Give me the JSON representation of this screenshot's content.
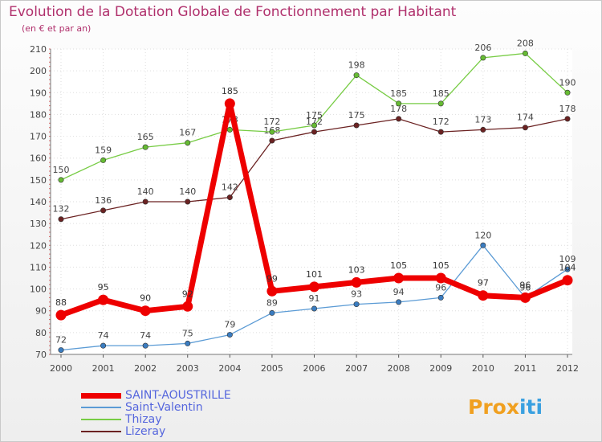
{
  "chart_data": {
    "type": "line",
    "title": "Evolution de la Dotation Globale de Fonctionnement par Habitant",
    "subtitle": "(en € et par an)",
    "xlabel": "",
    "ylabel": "",
    "x": [
      "2000",
      "2001",
      "2002",
      "2003",
      "2004",
      "2005",
      "2006",
      "2007",
      "2008",
      "2009",
      "2010",
      "2011",
      "2012"
    ],
    "ylim": [
      70,
      210
    ],
    "yticks": [
      70,
      80,
      90,
      100,
      110,
      120,
      130,
      140,
      150,
      160,
      170,
      180,
      190,
      200,
      210
    ],
    "grid": true,
    "legend_position": "bottom-left",
    "series": [
      {
        "name": "SAINT-AOUSTRILLE",
        "color": "#ee0000",
        "values": [
          88,
          95,
          90,
          92,
          185,
          99,
          101,
          103,
          105,
          105,
          97,
          96,
          104
        ]
      },
      {
        "name": "Saint-Valentin",
        "color": "#5b9bd5",
        "values": [
          72,
          74,
          74,
          75,
          79,
          89,
          91,
          93,
          94,
          96,
          120,
          96,
          109
        ]
      },
      {
        "name": "Thizay",
        "color": "#77cc44",
        "values": [
          150,
          159,
          165,
          167,
          173,
          172,
          175,
          198,
          185,
          185,
          206,
          208,
          190
        ]
      },
      {
        "name": "Lizeray",
        "color": "#6b2222",
        "values": [
          132,
          136,
          140,
          140,
          142,
          168,
          172,
          175,
          178,
          172,
          173,
          174,
          178
        ]
      }
    ]
  },
  "logo": {
    "part1": "Prox",
    "part2": "iti"
  }
}
